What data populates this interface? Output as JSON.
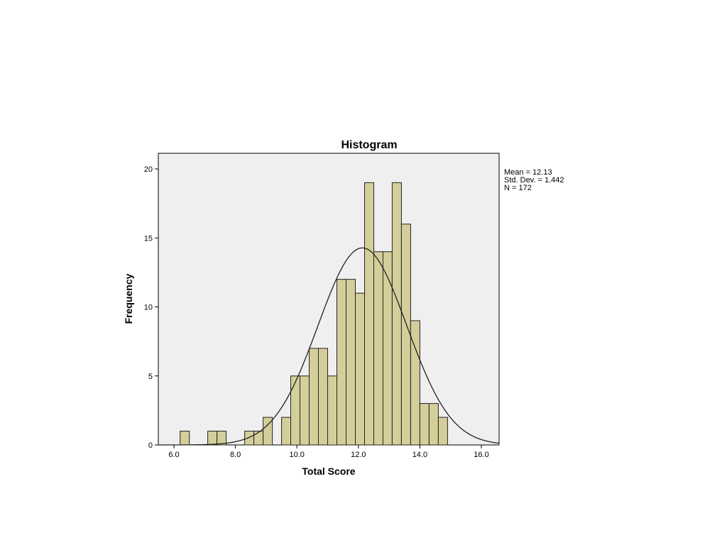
{
  "chart_data": {
    "type": "bar",
    "title": "Histogram",
    "xlabel": "Total Score",
    "ylabel": "Frequency",
    "xlim": [
      5.5,
      16.5
    ],
    "ylim": [
      0,
      21
    ],
    "xticks": [
      6.0,
      8.0,
      10.0,
      12.0,
      14.0,
      16.0
    ],
    "xtick_labels": [
      "6.0",
      "8.0",
      "10.0",
      "12.0",
      "14.0",
      "16.0"
    ],
    "yticks": [
      0,
      5,
      10,
      15,
      20
    ],
    "ytick_labels": [
      "0",
      "5",
      "10",
      "15",
      "20"
    ],
    "bin_width": 0.3,
    "bins": [
      {
        "start": 6.2,
        "count": 1
      },
      {
        "start": 7.1,
        "count": 1
      },
      {
        "start": 7.4,
        "count": 1
      },
      {
        "start": 8.3,
        "count": 1
      },
      {
        "start": 8.6,
        "count": 1
      },
      {
        "start": 8.9,
        "count": 2
      },
      {
        "start": 9.5,
        "count": 2
      },
      {
        "start": 9.8,
        "count": 5
      },
      {
        "start": 10.1,
        "count": 5
      },
      {
        "start": 10.4,
        "count": 7
      },
      {
        "start": 10.7,
        "count": 7
      },
      {
        "start": 11.0,
        "count": 5
      },
      {
        "start": 11.3,
        "count": 12
      },
      {
        "start": 11.6,
        "count": 12
      },
      {
        "start": 11.9,
        "count": 11
      },
      {
        "start": 12.2,
        "count": 19
      },
      {
        "start": 12.5,
        "count": 14
      },
      {
        "start": 12.8,
        "count": 14
      },
      {
        "start": 13.1,
        "count": 19
      },
      {
        "start": 13.4,
        "count": 16
      },
      {
        "start": 13.7,
        "count": 9
      },
      {
        "start": 14.0,
        "count": 3
      },
      {
        "start": 14.3,
        "count": 3
      },
      {
        "start": 14.6,
        "count": 2
      }
    ],
    "normal_curve": {
      "mean": 12.13,
      "std_dev": 1.442,
      "n": 172
    },
    "stats_text": [
      "Mean = 12.13",
      "Std. Dev. = 1.442",
      "N = 172"
    ],
    "grid": false,
    "legend": "none",
    "colors": {
      "bar_fill": "#d4cf9a",
      "bar_stroke": "#222222",
      "plot_background": "#efefef",
      "curve": "#222222"
    }
  }
}
